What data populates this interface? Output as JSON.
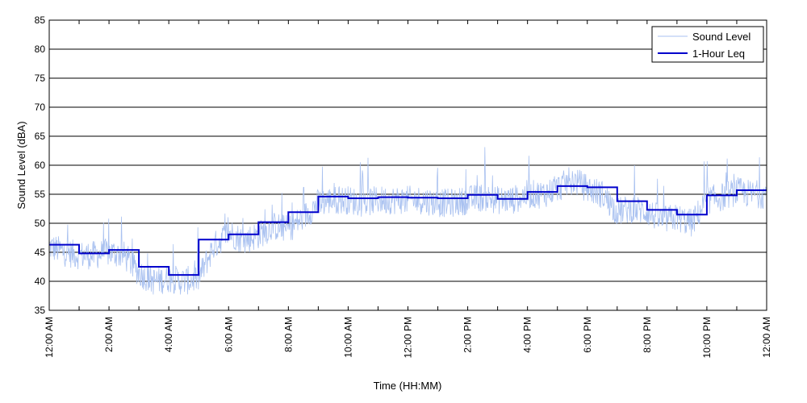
{
  "chart_data": {
    "type": "line",
    "title": "",
    "xlabel": "Time (HH:MM)",
    "ylabel": "Sound Level (dBA)",
    "xlim_hours": [
      0,
      24
    ],
    "ylim": [
      35,
      85
    ],
    "y_ticks": [
      35,
      40,
      45,
      50,
      55,
      60,
      65,
      70,
      75,
      80,
      85
    ],
    "x_ticks_hours": [
      0,
      2,
      4,
      6,
      8,
      10,
      12,
      14,
      16,
      18,
      20,
      22,
      24
    ],
    "x_tick_labels": [
      "12:00 AM",
      "2:00 AM",
      "4:00 AM",
      "6:00 AM",
      "8:00 AM",
      "10:00 AM",
      "12:00 PM",
      "2:00 PM",
      "4:00 PM",
      "6:00 PM",
      "8:00 PM",
      "10:00 PM",
      "12:00 AM"
    ],
    "grid": "horizontal",
    "legend_position": "top-right",
    "colors": {
      "sound_level": "#a9c1f0",
      "leq": "#0000cc"
    },
    "series": [
      {
        "name": "Sound Level",
        "style": "thin-line",
        "x_hours": [
          0.0,
          0.5,
          1.0,
          1.5,
          2.0,
          2.5,
          3.0,
          3.5,
          4.0,
          4.5,
          5.0,
          5.5,
          6.0,
          6.5,
          7.0,
          7.5,
          8.0,
          8.5,
          9.0,
          9.5,
          10.0,
          10.5,
          11.0,
          11.5,
          12.0,
          12.5,
          13.0,
          13.5,
          14.0,
          14.5,
          15.0,
          15.5,
          16.0,
          16.5,
          17.0,
          17.5,
          18.0,
          18.5,
          19.0,
          19.5,
          20.0,
          20.5,
          21.0,
          21.5,
          22.0,
          22.5,
          23.0,
          23.5,
          24.0
        ],
        "values": [
          46.0,
          45.0,
          44.5,
          44.5,
          45.0,
          44.5,
          41.5,
          40.0,
          40.5,
          40.0,
          40.5,
          46.0,
          48.5,
          47.0,
          48.0,
          49.5,
          49.0,
          51.0,
          53.5,
          54.0,
          54.0,
          53.5,
          54.0,
          54.0,
          54.0,
          54.0,
          53.5,
          53.5,
          54.0,
          54.5,
          54.0,
          54.0,
          55.0,
          55.0,
          56.0,
          57.5,
          56.0,
          55.0,
          52.0,
          52.5,
          52.0,
          50.5,
          51.0,
          50.0,
          54.0,
          54.5,
          55.5,
          55.0,
          55.0
        ]
      },
      {
        "name": "1-Hour Leq",
        "style": "step",
        "step_start_hours": [
          0,
          1,
          2,
          3,
          4,
          5,
          6,
          7,
          8,
          9,
          10,
          11,
          12,
          13,
          14,
          15,
          16,
          17,
          18,
          19,
          20,
          21,
          22,
          23
        ],
        "values": [
          46.3,
          44.8,
          45.4,
          42.5,
          41.1,
          47.2,
          48.1,
          50.2,
          51.9,
          54.6,
          54.3,
          54.5,
          54.4,
          54.3,
          54.9,
          54.2,
          55.4,
          56.4,
          56.2,
          53.8,
          52.3,
          51.5,
          54.8,
          55.7
        ]
      }
    ]
  }
}
